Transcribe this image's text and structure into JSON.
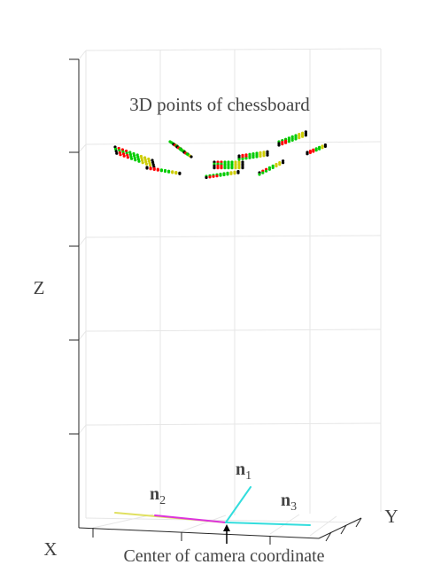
{
  "figure": {
    "annotation": "3D points of chessboard",
    "axis_label_z": "Z",
    "axis_label_x": "X",
    "axis_label_y": "Y",
    "caption": "Center of camera coordinate",
    "vectors": [
      {
        "base": "n",
        "sub": "1",
        "color": "#33dddd"
      },
      {
        "base": "n",
        "sub": "2",
        "color": "#dd33dd"
      },
      {
        "base": "n",
        "sub": "3",
        "color": "#33dddd"
      }
    ],
    "point_colors": [
      "#000000",
      "#ff0000",
      "#00cc00",
      "#cccc00"
    ]
  }
}
